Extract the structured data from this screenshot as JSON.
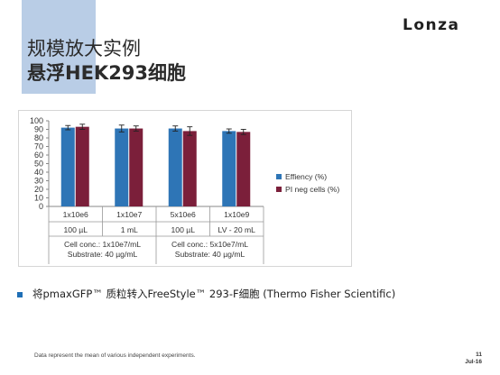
{
  "slide": {
    "title_line1": "规模放大实例",
    "title_line2": "悬浮HEK293细胞",
    "logo": "Lonza",
    "bullet": "将pmaxGFP™ 质粒转入FreeStyle™ 293-F细胞 (Thermo Fisher Scientific)",
    "footnote": "Data represent the mean of various independent experiments.",
    "page_number": "11",
    "date": "Jul-16",
    "accent_color": "#b9cde6"
  },
  "chart_data": {
    "type": "bar",
    "ylim": [
      0,
      100
    ],
    "yticks": [
      0,
      10,
      20,
      30,
      40,
      50,
      60,
      70,
      80,
      90,
      100
    ],
    "categories": [
      "1x10e6",
      "1x10e7",
      "5x10e6",
      "1x10e9"
    ],
    "volumes": [
      "100 µL",
      "1 mL",
      "100 µL",
      "LV - 20 mL"
    ],
    "condition_groups": [
      {
        "span": 2,
        "line1": "Cell conc.: 1x10e7/mL",
        "line2": "Substrate: 40 µg/mL"
      },
      {
        "span": 2,
        "line1": "Cell conc.: 5x10e7/mL",
        "line2": "Substrate: 40 µg/mL"
      }
    ],
    "series": [
      {
        "name": "Effiency (%)",
        "color": "#2e75b6",
        "values": [
          92,
          91,
          91,
          88
        ],
        "errors": [
          2.5,
          4,
          3,
          2.5
        ]
      },
      {
        "name": "PI neg cells (%)",
        "color": "#7b1f3a",
        "values": [
          93,
          91,
          88,
          87
        ],
        "errors": [
          3,
          3,
          5,
          3
        ]
      }
    ],
    "legend_position": "right",
    "grid": false
  }
}
